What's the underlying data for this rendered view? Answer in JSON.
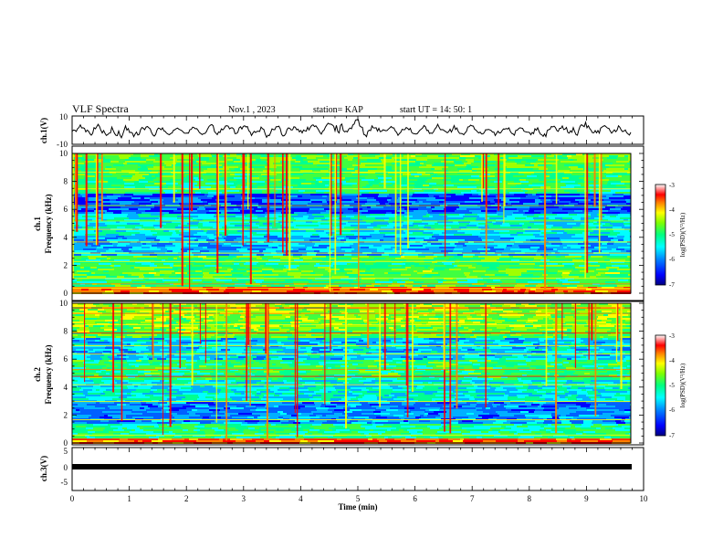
{
  "header": {
    "title": "VLF Spectra",
    "date": "Nov.1 , 2023",
    "station": "station= KAP",
    "start": "start UT = 14: 50: 1"
  },
  "colors": {
    "waveform": "#000000",
    "colormap": [
      "#00007f",
      "#0000ff",
      "#0080ff",
      "#00ffff",
      "#00ff80",
      "#80ff00",
      "#ffff00",
      "#ff8000",
      "#ff0000",
      "#ffffff"
    ]
  },
  "chart_data": [
    {
      "type": "line",
      "panel": "ch1-waveform",
      "ylabel": "ch.1(V)",
      "ylim": [
        -10,
        10
      ],
      "yticks": [
        "10",
        "-10"
      ],
      "xlim": [
        0,
        10
      ]
    },
    {
      "type": "heatmap",
      "panel": "ch1-spectrogram",
      "ylabel": "ch.1  Frequency (kHz)",
      "ylabel_line1": "ch.1",
      "ylabel_line2": "Frequency (kHz)",
      "ylim": [
        0,
        10
      ],
      "yticks": [
        "0",
        "2",
        "4",
        "6",
        "8",
        "10"
      ],
      "colorbar_label": "log(PSD)(V²/Hz)",
      "colorbar_range": [
        -7,
        -3
      ],
      "colorbar_ticks": [
        "-3",
        "-4",
        "-5",
        "-6",
        "-7"
      ]
    },
    {
      "type": "heatmap",
      "panel": "ch2-spectrogram",
      "ylabel": "ch.2  Frequency (kHz)",
      "ylabel_line1": "ch.2",
      "ylabel_line2": "Frequency (kHz)",
      "ylim": [
        0,
        10
      ],
      "yticks": [
        "0",
        "2",
        "4",
        "6",
        "8",
        "10"
      ],
      "colorbar_label": "log(PSD)(V²/Hz)",
      "colorbar_range": [
        -7,
        -3
      ],
      "colorbar_ticks": [
        "-3",
        "-4",
        "-5",
        "-6",
        "-7"
      ]
    },
    {
      "type": "line",
      "panel": "ch3-waveform",
      "ylabel": "ch.3(V)",
      "ylim": [
        -5,
        5
      ],
      "yticks": [
        "5",
        "0",
        "-5"
      ],
      "xlabel": "Time (min)",
      "xlim": [
        0,
        10
      ],
      "xticks": [
        "0",
        "1",
        "2",
        "3",
        "4",
        "5",
        "6",
        "7",
        "8",
        "9",
        "10"
      ]
    }
  ]
}
